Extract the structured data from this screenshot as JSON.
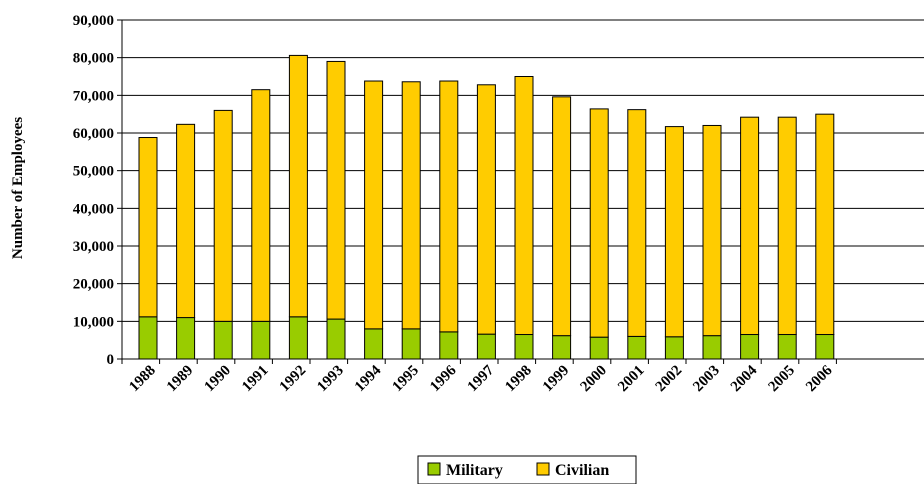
{
  "chart_data": {
    "type": "bar",
    "stacked": true,
    "ylabel": "Number of Employees",
    "ylim": [
      0,
      90000
    ],
    "yticks": [
      "0",
      "10,000",
      "20,000",
      "30,000",
      "40,000",
      "50,000",
      "60,000",
      "70,000",
      "80,000",
      "90,000"
    ],
    "grid": true,
    "legend_position": "bottom",
    "categories": [
      "1988",
      "1989",
      "1990",
      "1991",
      "1992",
      "1993",
      "1994",
      "1995",
      "1996",
      "1997",
      "1998",
      "1999",
      "2000",
      "2001",
      "2002",
      "2003",
      "2004",
      "2005",
      "2006"
    ],
    "series": [
      {
        "name": "Military",
        "color": "#99CC00",
        "values": [
          11200,
          11000,
          10000,
          10000,
          11200,
          10600,
          8000,
          8000,
          7200,
          6600,
          6500,
          6200,
          5800,
          6000,
          5900,
          6200,
          6500,
          6500,
          6500
        ]
      },
      {
        "name": "Civilian",
        "color": "#FFCC00",
        "values": [
          47600,
          51300,
          56000,
          61500,
          69400,
          68400,
          65800,
          65600,
          66600,
          66200,
          68500,
          63400,
          60600,
          60200,
          55800,
          55800,
          57700,
          57700,
          58500
        ]
      }
    ]
  }
}
